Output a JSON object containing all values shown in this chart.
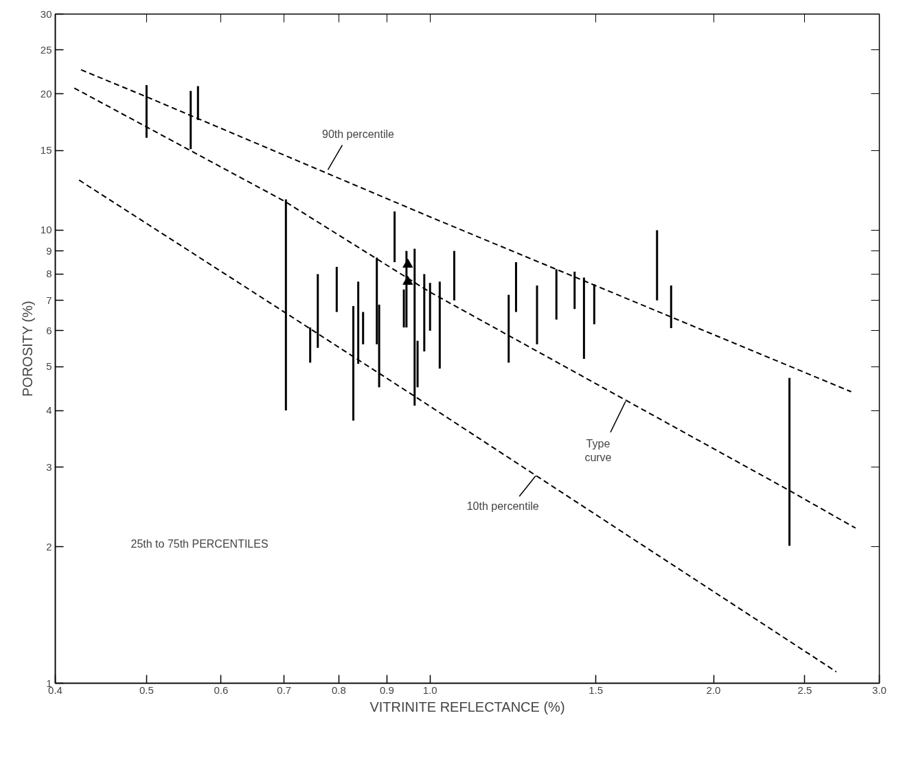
{
  "chart_data": {
    "type": "bar",
    "xlabel": "VITRINITE REFLECTANCE (%)",
    "ylabel": "POROSITY (%)",
    "log": "xy",
    "grid": false,
    "xlim": [
      0.4,
      3.0
    ],
    "ylim": [
      1,
      30
    ],
    "xticks": [
      0.4,
      0.5,
      0.6,
      0.7,
      0.8,
      0.9,
      {
        "value": 1.0,
        "label": "1.0"
      },
      1.5,
      {
        "value": 2.0,
        "label": "2.0"
      },
      2.5,
      {
        "value": 3.0,
        "label": "3.0"
      }
    ],
    "yticks": [
      1,
      2,
      3,
      4,
      5,
      6,
      7,
      8,
      9,
      10,
      15,
      20,
      25,
      30
    ],
    "series": [
      {
        "color": "#000000",
        "x": [
          0.5,
          0.557,
          0.567,
          0.703,
          0.746,
          0.76,
          0.796,
          0.829,
          0.839,
          0.849,
          0.878,
          0.883,
          0.917,
          0.938,
          0.944,
          0.963,
          0.97,
          0.986,
          1.0,
          1.024,
          1.061,
          1.212,
          1.234,
          1.299,
          1.362,
          1.424,
          1.457,
          1.494,
          1.742,
          1.803,
          2.408
        ],
        "base": [
          16.0,
          15.1,
          17.5,
          4.0,
          5.1,
          5.5,
          6.6,
          3.8,
          5.07,
          5.6,
          5.6,
          4.5,
          8.5,
          6.1,
          6.1,
          4.1,
          4.5,
          5.4,
          6.0,
          4.95,
          7.0,
          5.1,
          6.6,
          5.6,
          6.35,
          6.7,
          5.2,
          6.2,
          7.0,
          6.08,
          2.01
        ],
        "values": [
          4.9,
          5.2,
          3.3,
          7.7,
          1.0,
          2.5,
          1.7,
          3.0,
          2.63,
          1.0,
          3.1,
          2.35,
          2.5,
          1.3,
          2.9,
          5.0,
          1.2,
          2.6,
          1.65,
          2.75,
          2.0,
          2.1,
          1.9,
          1.95,
          1.85,
          1.4,
          2.66,
          1.4,
          3.0,
          1.47,
          2.71
        ]
      },
      {
        "type": "scatter",
        "marker": "triangle",
        "color": "#000000",
        "x": [
          0.947,
          0.947
        ],
        "values": [
          8.4,
          7.7
        ]
      },
      {
        "type": "line",
        "line_style": "dashed",
        "color": "#000000",
        "x": [
          0.426,
          0.5,
          1.0,
          2.8
        ],
        "values": [
          22.6,
          19.7,
          10.7,
          4.4
        ]
      },
      {
        "type": "line",
        "line_style": "dashed",
        "color": "#000000",
        "x": [
          0.419,
          0.7,
          1.0,
          2.41,
          2.83
        ],
        "values": [
          20.6,
          11.6,
          7.3,
          2.66,
          2.2
        ]
      },
      {
        "type": "line",
        "line_style": "dashed",
        "color": "#000000",
        "x": [
          0.424,
          0.7,
          0.963,
          2.7
        ],
        "values": [
          12.9,
          6.6,
          4.3,
          1.06
        ]
      }
    ],
    "annotations": [
      {
        "text": "90th percentile",
        "x": 0.779,
        "y": 13.6
      },
      {
        "text": "Type\ncurve",
        "x": 1.613,
        "y": 4.19
      },
      {
        "text": "10th percentile",
        "x": 1.295,
        "y": 2.87
      },
      "25th to 75th PERCENTILES"
    ]
  }
}
